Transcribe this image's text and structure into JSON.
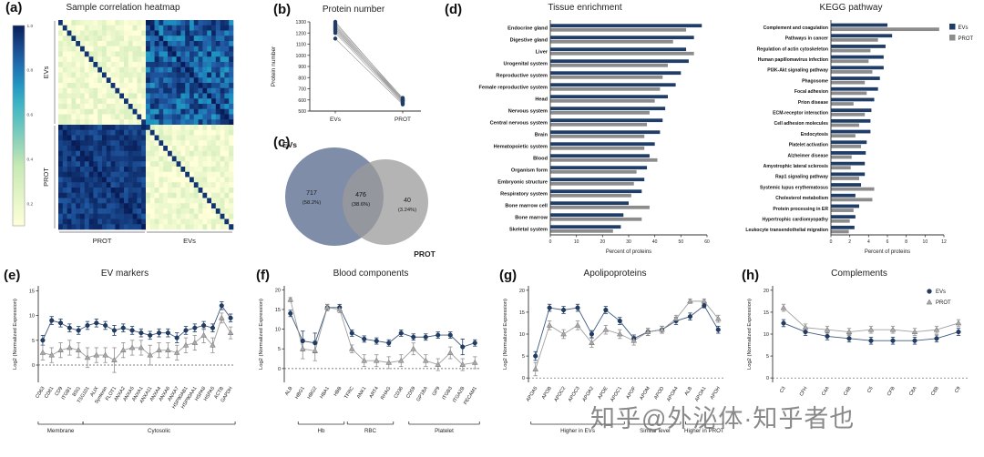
{
  "figure": {
    "panel_labels": {
      "a": "(a)",
      "b": "(b)",
      "c": "(c)",
      "d": "(d)",
      "e": "(e)",
      "f": "(f)",
      "g": "(g)",
      "h": "(h)"
    },
    "watermark": "知乎@外泌体·知乎者也"
  },
  "colors": {
    "evs": "#1f3d66",
    "prot": "#8c8c8c",
    "heatmap_low": "#ffffd9",
    "heatmap_high": "#081d58"
  },
  "chart_data": [
    {
      "panel": "a",
      "type": "heatmap",
      "title": "Sample correlation heatmap",
      "row_groups": [
        "EVs",
        "PROT"
      ],
      "col_groups": [
        "PROT",
        "EVs"
      ],
      "n_per_group": 20,
      "colorbar_ticks": [
        1.0,
        0.8,
        0.6,
        0.4,
        0.2
      ],
      "block_correlations": {
        "within_EVs": 0.85,
        "within_PROT": 0.93,
        "same_subject_cross": 0.95,
        "different_subject_cross": 0.18
      },
      "colormap": "YlGnBu"
    },
    {
      "panel": "b",
      "type": "paired",
      "title": "Protein number",
      "ylabel": "Protein number",
      "categories": [
        "EVs",
        "PROT"
      ],
      "ylim": [
        500,
        1300
      ],
      "yticks": [
        500,
        600,
        700,
        800,
        900,
        1000,
        1100,
        1200,
        1300
      ],
      "pairs": [
        [
          1300,
          605
        ],
        [
          1285,
          618
        ],
        [
          1272,
          598
        ],
        [
          1260,
          610
        ],
        [
          1250,
          588
        ],
        [
          1238,
          600
        ],
        [
          1228,
          578
        ],
        [
          1215,
          592
        ],
        [
          1200,
          570
        ],
        [
          1150,
          560
        ]
      ]
    },
    {
      "panel": "c",
      "type": "venn",
      "left": {
        "label": "EVs",
        "count": "717",
        "pct": "(58.2%)"
      },
      "middle": {
        "count": "476",
        "pct": "(38.6%)"
      },
      "right": {
        "label": "PROT",
        "count": "40",
        "pct": "(3.24%)"
      }
    },
    {
      "panel": "d1",
      "type": "hbar",
      "title": "Tissue enrichment",
      "xlabel": "Percent of proteins",
      "xlim": [
        0,
        60
      ],
      "xticks": [
        0,
        10,
        20,
        30,
        40,
        50,
        60
      ],
      "categories": [
        "Endocrine gland",
        "Digestive gland",
        "Liver",
        "Urogenital system",
        "Reproductive system",
        "Female reproductive system",
        "Head",
        "Nervous system",
        "Central nervous system",
        "Brain",
        "Hematopoietic system",
        "Blood",
        "Organism form",
        "Embryonic structure",
        "Respiratory system",
        "Bone marrow cell",
        "Bone marrow",
        "Skeletal system"
      ],
      "series": [
        {
          "name": "EVs",
          "values": [
            58,
            55,
            52,
            53,
            50,
            48,
            45,
            44,
            43,
            42,
            40,
            38,
            37,
            36,
            35,
            30,
            28,
            27
          ]
        },
        {
          "name": "PROT",
          "values": [
            52,
            47,
            55,
            45,
            43,
            42,
            40,
            38,
            37,
            36,
            36,
            41,
            33,
            32,
            31,
            38,
            35,
            24
          ]
        }
      ]
    },
    {
      "panel": "d2",
      "type": "hbar",
      "title": "KEGG pathway",
      "xlabel": "Percent of proteins",
      "xlim": [
        0,
        12
      ],
      "xticks": [
        0,
        2,
        4,
        6,
        8,
        10,
        12
      ],
      "legend": true,
      "categories": [
        "Complement and coagulation",
        "Pathways in cancer",
        "Regulation of actin cytoskeleton",
        "Human papillomavirus infection",
        "PI3K-Akt signaling pathway",
        "Phagosome",
        "Focal adhesion",
        "Prion disease",
        "ECM-receptor interaction",
        "Cell adhesion molecules",
        "Endocytosis",
        "Platelet activation",
        "Alzheimer disease",
        "Amyotrophic lateral sclerosis",
        "Rap1 signaling pathway",
        "Systemic lupus erythematosus",
        "Cholesterol metabolism",
        "Protein processing in ER",
        "Hypertrophic cardiomyopathy",
        "Leukocyte transendothelial migration"
      ],
      "series": [
        {
          "name": "EVs",
          "values": [
            6.0,
            6.5,
            5.8,
            5.6,
            5.6,
            5.2,
            5.0,
            4.6,
            4.3,
            4.2,
            4.2,
            3.8,
            3.7,
            3.6,
            3.6,
            3.2,
            2.6,
            3.0,
            2.6,
            2.5
          ]
        },
        {
          "name": "PROT",
          "values": [
            11.5,
            5.0,
            4.2,
            4.0,
            4.4,
            3.6,
            3.8,
            2.4,
            3.6,
            3.0,
            2.6,
            3.2,
            2.2,
            2.1,
            3.0,
            4.6,
            4.4,
            2.4,
            2.0,
            1.9
          ]
        }
      ]
    },
    {
      "panel": "e",
      "type": "dotline",
      "title": "EV markers",
      "ylabel": "Log2 (Normalized Expression)",
      "ylim": [
        -3.5,
        16
      ],
      "yticks": [
        0,
        5,
        10,
        15
      ],
      "zero_line": true,
      "categories": [
        "CD63",
        "CD81",
        "CD9",
        "ITGB1",
        "BSG",
        "TSG101",
        "ALIX",
        "Syntenin",
        "FLOT1",
        "ANXA2",
        "ANXA5",
        "ANXA1",
        "ANXA11",
        "ANXA4",
        "ANXA6",
        "ANXA7",
        "HSP90AB1",
        "HSP90AA1",
        "HSPA8",
        "HSPA5",
        "ACTB",
        "GAPDH"
      ],
      "series": [
        {
          "name": "EVs",
          "marker": "circle",
          "values": [
            5,
            9,
            8.5,
            7.5,
            7,
            8,
            8.5,
            8,
            7,
            7.5,
            7,
            6.5,
            6,
            6.5,
            6.5,
            5.5,
            7,
            7.5,
            8,
            7.5,
            12,
            9.5
          ],
          "errors": [
            1,
            0.8,
            0.8,
            0.8,
            0.8,
            0.8,
            0.8,
            0.8,
            1,
            0.8,
            0.8,
            0.8,
            0.8,
            0.8,
            0.8,
            1,
            0.8,
            0.8,
            0.8,
            0.8,
            0.8,
            0.8
          ]
        },
        {
          "name": "PROT",
          "marker": "triangle",
          "values": [
            2.5,
            2,
            3,
            3.5,
            3,
            1.5,
            2,
            2,
            1,
            3,
            3.5,
            3.5,
            2,
            3,
            3,
            2.5,
            4,
            4.5,
            6,
            4,
            9.5,
            6.5
          ],
          "errors": [
            1.5,
            1.5,
            1.5,
            1.5,
            1.5,
            2,
            1.5,
            1.5,
            2.5,
            1.5,
            1.5,
            1.5,
            2,
            1.5,
            1.5,
            1.5,
            1.5,
            1.5,
            1.5,
            1.5,
            1,
            1.2
          ]
        }
      ],
      "groups": [
        {
          "label": "Membrane",
          "from": 0,
          "to": 4
        },
        {
          "label": "Cytosolic",
          "from": 5,
          "to": 21
        }
      ]
    },
    {
      "panel": "f",
      "type": "dotline",
      "title": "Blood components",
      "ylabel": "Log2 (Normalized Expression)",
      "ylim": [
        -3.5,
        21
      ],
      "yticks": [
        0,
        5,
        10,
        15,
        20
      ],
      "zero_line": true,
      "categories": [
        "ALB",
        "HBG1",
        "HBG2",
        "HBA1",
        "HBB",
        "TFRC",
        "ANK1",
        "ART4",
        "RHAG",
        "CD36",
        "CD59",
        "GP1BA",
        "GP9",
        "ITGB3",
        "ITGA2B",
        "PECAM1"
      ],
      "series": [
        {
          "name": "EVs",
          "marker": "circle",
          "values": [
            14,
            7,
            6.5,
            15.5,
            15.5,
            9,
            7.5,
            7,
            6.5,
            9,
            8,
            8,
            8.5,
            8.5,
            5.5,
            6.5
          ],
          "errors": [
            0.8,
            2.5,
            2.5,
            0.8,
            0.8,
            0.8,
            0.8,
            0.8,
            0.8,
            0.8,
            0.8,
            0.8,
            0.8,
            0.8,
            2,
            0.8
          ]
        },
        {
          "name": "PROT",
          "marker": "triangle",
          "values": [
            17.5,
            5,
            4.5,
            15.5,
            15,
            5,
            2,
            2,
            1.5,
            2,
            5,
            2,
            1,
            4,
            1,
            1.5
          ],
          "errors": [
            0.5,
            2.5,
            2.5,
            0.8,
            0.8,
            1,
            1.5,
            1.5,
            1.5,
            1.5,
            1.5,
            1.5,
            1.5,
            1.5,
            1.5,
            1.5
          ]
        }
      ],
      "groups": [
        {
          "label": "Hb",
          "from": 1,
          "to": 4
        },
        {
          "label": "RBC",
          "from": 5,
          "to": 8
        },
        {
          "label": "Platelet",
          "from": 10,
          "to": 15
        }
      ]
    },
    {
      "panel": "g",
      "type": "dotline",
      "title": "Apolipoproteins",
      "ylabel": "Log2 (Normalized Expression)",
      "ylim": [
        -1,
        21
      ],
      "yticks": [
        0,
        5,
        10,
        15,
        20
      ],
      "zero_line": true,
      "categories": [
        "APOA5",
        "APOB",
        "APOC2",
        "APOC3",
        "APOA2",
        "APOE",
        "APOC1",
        "APOF",
        "APOM",
        "APOD",
        "APOA4",
        "ALB",
        "APOA1",
        "APOH"
      ],
      "series": [
        {
          "name": "EVs",
          "marker": "circle",
          "values": [
            5,
            16,
            15.5,
            16,
            10,
            15.5,
            13,
            9,
            10.5,
            11,
            13,
            14,
            16.5,
            11
          ],
          "errors": [
            1,
            0.8,
            0.8,
            0.8,
            0.8,
            0.8,
            0.8,
            0.8,
            0.8,
            0.8,
            0.8,
            0.8,
            0.5,
            0.8
          ]
        },
        {
          "name": "PROT",
          "marker": "triangle",
          "values": [
            2,
            12,
            10,
            12,
            8,
            11,
            10,
            8.5,
            10.5,
            11,
            13.5,
            17.5,
            17.5,
            13.5
          ],
          "errors": [
            1.5,
            1,
            1,
            1,
            1,
            1,
            1,
            1,
            0.8,
            0.8,
            0.8,
            0.5,
            0.5,
            0.8
          ]
        }
      ],
      "groups": [
        {
          "label": "Higher in EVs",
          "from": 0,
          "to": 6
        },
        {
          "label": "Similar level",
          "from": 7,
          "to": 10
        },
        {
          "label": "Higher in PROT",
          "from": 11,
          "to": 13
        }
      ]
    },
    {
      "panel": "h",
      "type": "dotline",
      "title": "Complements",
      "ylabel": "Log2 (Normalized Expression)",
      "ylim": [
        -1,
        21
      ],
      "yticks": [
        0,
        5,
        10,
        15,
        20
      ],
      "zero_line": true,
      "legend": true,
      "categories": [
        "C3",
        "CFH",
        "C4A",
        "C4B",
        "C5",
        "CFB",
        "C8A",
        "C8B",
        "C9"
      ],
      "series": [
        {
          "name": "EVs",
          "marker": "circle",
          "values": [
            12.5,
            10.5,
            9.5,
            9,
            8.5,
            8.5,
            8.5,
            9,
            10.5
          ],
          "errors": [
            0.8,
            0.8,
            0.8,
            0.8,
            0.8,
            0.8,
            0.8,
            0.8,
            0.8
          ]
        },
        {
          "name": "PROT",
          "marker": "triangle",
          "values": [
            16,
            11.5,
            11,
            10.5,
            11,
            11,
            10.5,
            11,
            12.5
          ],
          "errors": [
            0.8,
            0.8,
            0.8,
            0.8,
            0.8,
            0.8,
            0.8,
            0.8,
            0.8
          ]
        }
      ],
      "groups": []
    }
  ]
}
